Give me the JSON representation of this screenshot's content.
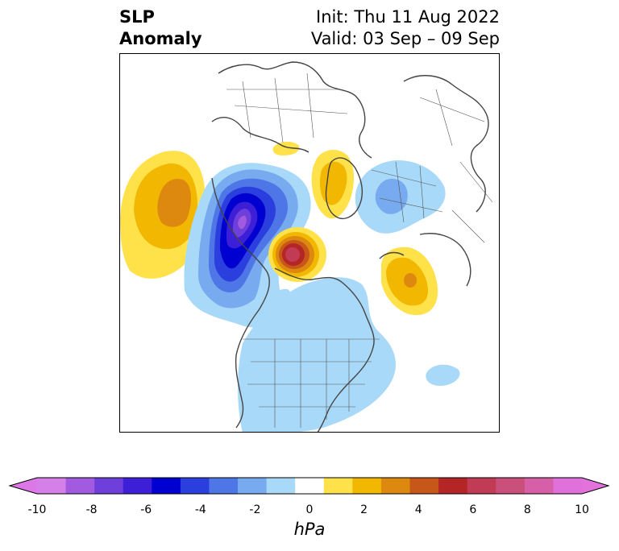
{
  "title": {
    "left_line1": "SLP",
    "left_line2": "Anomaly",
    "init": "Init: Thu 11 Aug 2022",
    "valid": "Valid: 03 Sep – 09 Sep"
  },
  "colorbar": {
    "unit": "hPa",
    "min": -10,
    "max": 10,
    "extend": "both",
    "tick_labels": [
      "-10",
      "-8",
      "-6",
      "-4",
      "-2",
      "0",
      "2",
      "4",
      "6",
      "8",
      "10"
    ],
    "bin_colors": [
      "#d580e8",
      "#a25ae0",
      "#6f3fdb",
      "#3d1fd7",
      "#0000d1",
      "#2a3fde",
      "#4f76e6",
      "#78aaf0",
      "#a9d9f8",
      "#ffffff",
      "#ffe24a",
      "#f2b700",
      "#dd880f",
      "#c65718",
      "#b42525",
      "#c23b55",
      "#cb4f7b",
      "#d65fa8",
      "#e070da"
    ],
    "under_color": "#dc77e8",
    "over_color": "#e472dc"
  },
  "map": {
    "projection": "north-polar-stereographic",
    "region": "Northern Hemisphere (North America, Arctic, Europe, North Pacific)",
    "features": [
      {
        "name": "north-pacific-high-anomaly",
        "sign": "positive",
        "peak_hpa": 4
      },
      {
        "name": "alaska-yukon-low-anomaly",
        "sign": "negative",
        "peak_hpa": -8
      },
      {
        "name": "hudson-bay-high-anomaly",
        "sign": "positive",
        "peak_hpa": 8
      },
      {
        "name": "greenland-sea-high-anomaly",
        "sign": "positive",
        "peak_hpa": 2
      },
      {
        "name": "north-atlantic-high-anomaly",
        "sign": "positive",
        "peak_hpa": 4
      },
      {
        "name": "scandinavia-low-anomaly",
        "sign": "negative",
        "peak_hpa": -2
      },
      {
        "name": "eastern-north-america-low-anomaly",
        "sign": "negative",
        "peak_hpa": -2
      }
    ]
  }
}
